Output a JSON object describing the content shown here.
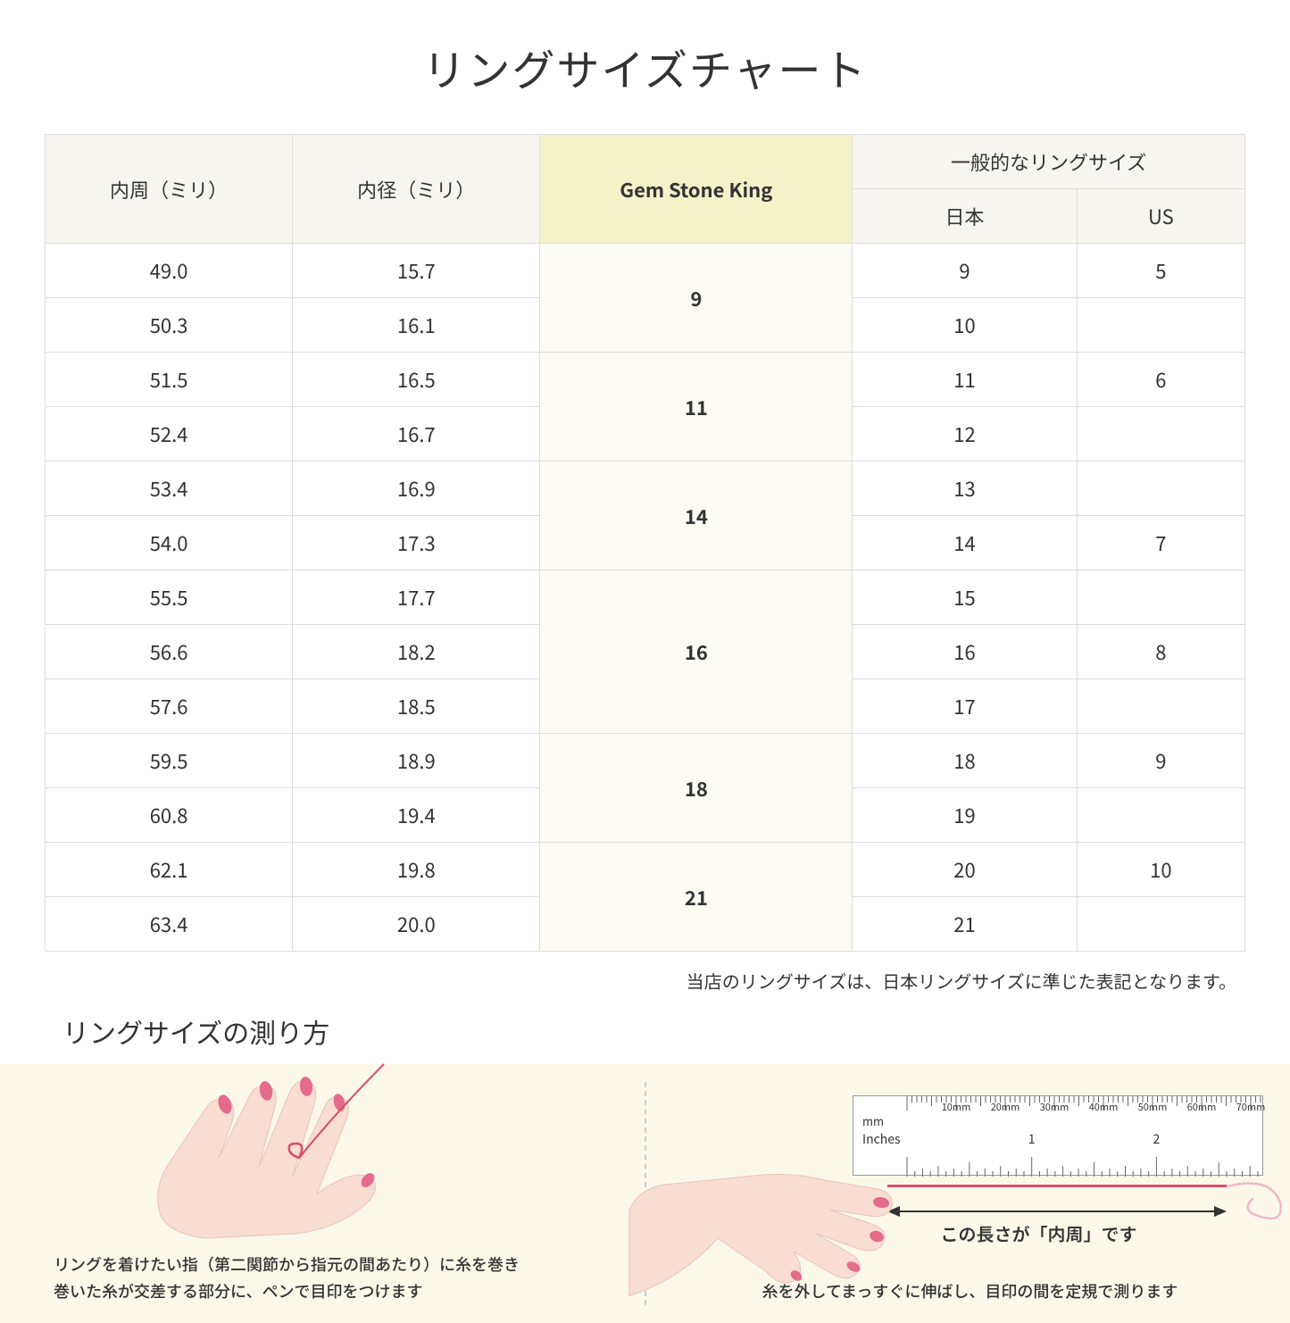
{
  "title": "リングサイズチャート",
  "headers": {
    "circumference": "内周（ミリ）",
    "diameter": "内径（ミリ）",
    "gemstone": "Gem Stone King",
    "general": "一般的なリングサイズ",
    "japan": "日本",
    "us": "US"
  },
  "rows": [
    {
      "circ": "49.0",
      "dia": "15.7",
      "gem": "9",
      "gem_rowspan": 2,
      "jp": "9",
      "us": "5"
    },
    {
      "circ": "50.3",
      "dia": "16.1",
      "jp": "10",
      "us": ""
    },
    {
      "circ": "51.5",
      "dia": "16.5",
      "gem": "11",
      "gem_rowspan": 2,
      "jp": "11",
      "us": "6"
    },
    {
      "circ": "52.4",
      "dia": "16.7",
      "jp": "12",
      "us": ""
    },
    {
      "circ": "53.4",
      "dia": "16.9",
      "gem": "14",
      "gem_rowspan": 2,
      "jp": "13",
      "us": ""
    },
    {
      "circ": "54.0",
      "dia": "17.3",
      "jp": "14",
      "us": "7"
    },
    {
      "circ": "55.5",
      "dia": "17.7",
      "gem": "16",
      "gem_rowspan": 3,
      "jp": "15",
      "us": ""
    },
    {
      "circ": "56.6",
      "dia": "18.2",
      "jp": "16",
      "us": "8"
    },
    {
      "circ": "57.6",
      "dia": "18.5",
      "jp": "17",
      "us": ""
    },
    {
      "circ": "59.5",
      "dia": "18.9",
      "gem": "18",
      "gem_rowspan": 2,
      "jp": "18",
      "us": "9"
    },
    {
      "circ": "60.8",
      "dia": "19.4",
      "jp": "19",
      "us": ""
    },
    {
      "circ": "62.1",
      "dia": "19.8",
      "gem": "21",
      "gem_rowspan": 2,
      "jp": "20",
      "us": "10"
    },
    {
      "circ": "63.4",
      "dia": "20.0",
      "jp": "21",
      "us": ""
    }
  ],
  "note": "当店のリングサイズは、日本リングサイズに準じた表記となります。",
  "measure": {
    "title": "リングサイズの測り方",
    "left_caption": "リングを着けたい指（第二関節から指元の間あたり）に糸を巻き\n巻いた糸が交差する部分に、ペンで目印をつけます",
    "right_caption": "糸を外してまっすぐに伸ばし、目印の間を定規で測ります",
    "arrow_text": "この長さが「内周」です",
    "ruler_mm_label": "mm",
    "ruler_in_label": "Inches",
    "ruler_mm_marks": [
      "10mm",
      "20mm",
      "30mm",
      "40mm",
      "50mm",
      "60mm",
      "70mm"
    ],
    "ruler_in_marks": [
      "1",
      "2"
    ]
  },
  "colors": {
    "header_bg": "#f7f5f0",
    "highlight_bg": "#f4f2c8",
    "highlight_cell_bg": "#fdfcf4",
    "border": "#dddddd",
    "measure_bg": "#fbf8ea",
    "skin": "#f8ddd0",
    "nail": "#e56b8c",
    "thread": "#d94c6a"
  }
}
